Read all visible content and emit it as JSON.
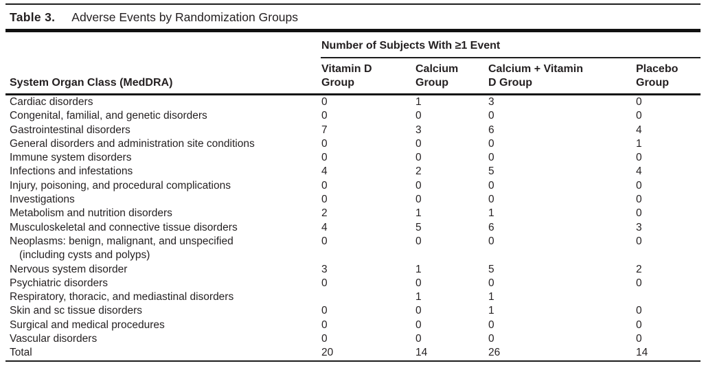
{
  "title": {
    "label": "Table 3.",
    "text": "Adverse Events by Randomization Groups"
  },
  "table": {
    "span_header": "Number of Subjects With ≥1 Event",
    "row_header": "System Organ Class (MedDRA)",
    "columns": [
      {
        "line1": "Vitamin D",
        "line2": "Group"
      },
      {
        "line1": "Calcium",
        "line2": "Group"
      },
      {
        "line1": "Calcium + Vitamin",
        "line2": "D Group"
      },
      {
        "line1": "Placebo",
        "line2": "Group"
      }
    ],
    "rows": [
      {
        "name": "Cardiac disorders",
        "values": [
          "0",
          "1",
          "3",
          "0"
        ]
      },
      {
        "name": "Congenital, familial, and genetic disorders",
        "values": [
          "0",
          "0",
          "0",
          "0"
        ]
      },
      {
        "name": "Gastrointestinal disorders",
        "values": [
          "7",
          "3",
          "6",
          "4"
        ]
      },
      {
        "name": "General disorders and administration site conditions",
        "values": [
          "0",
          "0",
          "0",
          "1"
        ]
      },
      {
        "name": "Immune system disorders",
        "values": [
          "0",
          "0",
          "0",
          "0"
        ]
      },
      {
        "name": "Infections and infestations",
        "values": [
          "4",
          "2",
          "5",
          "4"
        ]
      },
      {
        "name": "Injury, poisoning, and procedural complications",
        "values": [
          "0",
          "0",
          "0",
          "0"
        ]
      },
      {
        "name": "Investigations",
        "values": [
          "0",
          "0",
          "0",
          "0"
        ]
      },
      {
        "name": "Metabolism and nutrition disorders",
        "values": [
          "2",
          "1",
          "1",
          "0"
        ]
      },
      {
        "name": "Musculoskeletal and connective tissue disorders",
        "values": [
          "4",
          "5",
          "6",
          "3"
        ]
      },
      {
        "name": "Neoplasms: benign, malignant, and unspecified",
        "name2": "(including cysts and polyps)",
        "values": [
          "0",
          "0",
          "0",
          "0"
        ]
      },
      {
        "name": "Nervous system disorder",
        "values": [
          "3",
          "1",
          "5",
          "2"
        ]
      },
      {
        "name": "Psychiatric disorders",
        "values": [
          "0",
          "0",
          "0",
          "0"
        ]
      },
      {
        "name": "Respiratory, thoracic, and mediastinal disorders",
        "values": [
          "",
          "1",
          "1",
          ""
        ]
      },
      {
        "name": "Skin and sc tissue disorders",
        "values": [
          "0",
          "0",
          "1",
          "0"
        ]
      },
      {
        "name": "Surgical and medical procedures",
        "values": [
          "0",
          "0",
          "0",
          "0"
        ]
      },
      {
        "name": "Vascular disorders",
        "values": [
          "0",
          "0",
          "0",
          "0"
        ]
      },
      {
        "name": "Total",
        "values": [
          "20",
          "14",
          "26",
          "14"
        ]
      }
    ]
  },
  "colors": {
    "text": "#231f20",
    "rule": "#111111",
    "background": "#ffffff"
  }
}
